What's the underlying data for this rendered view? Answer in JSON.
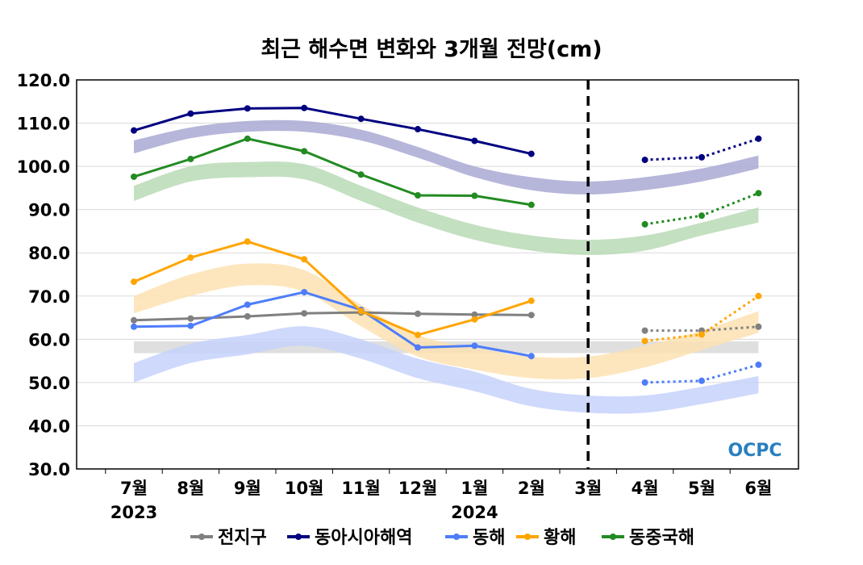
{
  "chart_data": {
    "type": "line",
    "title": "최근 해수면 변화와 3개월 전망(cm)",
    "categories": [
      "7월",
      "8월",
      "9월",
      "10월",
      "11월",
      "12월",
      "1월",
      "2월",
      "3월",
      "4월",
      "5월",
      "6월"
    ],
    "year_labels": [
      {
        "index": 0,
        "label": "2023"
      },
      {
        "index": 6,
        "label": "2024"
      }
    ],
    "ylim": [
      30,
      120
    ],
    "yticks": [
      "30.0",
      "40.0",
      "50.0",
      "60.0",
      "70.0",
      "80.0",
      "90.0",
      "100.0",
      "110.0",
      "120.0"
    ],
    "forecast_divider_index": 8,
    "logo": "OCPC",
    "series": [
      {
        "name": "전지구",
        "color": "#808080",
        "band_color": "#d9d9d9",
        "values": [
          64.4,
          64.8,
          65.3,
          66.0,
          66.2,
          65.9,
          65.7,
          65.6,
          null,
          62.0,
          62.0,
          62.9
        ],
        "band_low": [
          56.8,
          56.8,
          56.8,
          56.8,
          56.8,
          56.8,
          56.8,
          56.8,
          56.8,
          56.8,
          56.8,
          56.8
        ],
        "band_high": [
          59.5,
          59.5,
          59.5,
          59.5,
          59.5,
          59.5,
          59.5,
          59.5,
          59.5,
          59.5,
          59.5,
          59.5
        ]
      },
      {
        "name": "동아시아해역",
        "color": "#000080",
        "band_color": "#a9a9d4",
        "values": [
          108.3,
          112.2,
          113.4,
          113.5,
          111.0,
          108.6,
          105.9,
          102.9,
          null,
          101.5,
          102.1,
          106.4
        ],
        "band_low": [
          103,
          106.5,
          108,
          108,
          106,
          102,
          97.5,
          94.5,
          93.5,
          94.5,
          96.5,
          99.5
        ],
        "band_high": [
          106,
          109,
          110.5,
          110.5,
          108.5,
          104.5,
          100,
          97.5,
          96.5,
          97.5,
          99.5,
          102.5
        ]
      },
      {
        "name": "동해",
        "color": "#4f7df9",
        "band_color": "#c5d2fc",
        "values": [
          62.9,
          63.1,
          68.0,
          70.9,
          66.8,
          58.1,
          58.5,
          56.1,
          null,
          50.0,
          50.4,
          54.1
        ],
        "band_low": [
          50,
          54.5,
          56.5,
          58.5,
          55.5,
          51,
          48,
          44.5,
          43,
          43,
          45,
          47.5
        ],
        "band_high": [
          54.5,
          59,
          61,
          63,
          60,
          55.5,
          52.5,
          48.5,
          47,
          47,
          49,
          51.5
        ]
      },
      {
        "name": "황해",
        "color": "#ffa500",
        "band_color": "#fde2b2",
        "values": [
          73.3,
          78.9,
          82.6,
          78.5,
          66.5,
          61.0,
          64.6,
          68.9,
          null,
          59.6,
          61.1,
          70.0
        ],
        "band_low": [
          66,
          70,
          72.5,
          71,
          63,
          56,
          53,
          51,
          51,
          53.5,
          57.5,
          61.5
        ],
        "band_high": [
          70,
          75,
          77.5,
          76,
          68,
          61,
          58,
          56,
          56,
          58.5,
          62,
          66.5
        ]
      },
      {
        "name": "동중국해",
        "color": "#228b22",
        "band_color": "#b8dbb5",
        "values": [
          97.6,
          101.7,
          106.4,
          103.5,
          98.1,
          93.3,
          93.2,
          91.1,
          null,
          86.6,
          88.6,
          93.8
        ],
        "band_low": [
          92,
          96.5,
          97.5,
          97,
          92,
          87,
          83,
          80.5,
          79.5,
          80.5,
          84,
          87
        ],
        "band_high": [
          95.5,
          100,
          101,
          100.5,
          95.5,
          90.5,
          86.5,
          84,
          83,
          84,
          87,
          90.5
        ]
      }
    ]
  }
}
